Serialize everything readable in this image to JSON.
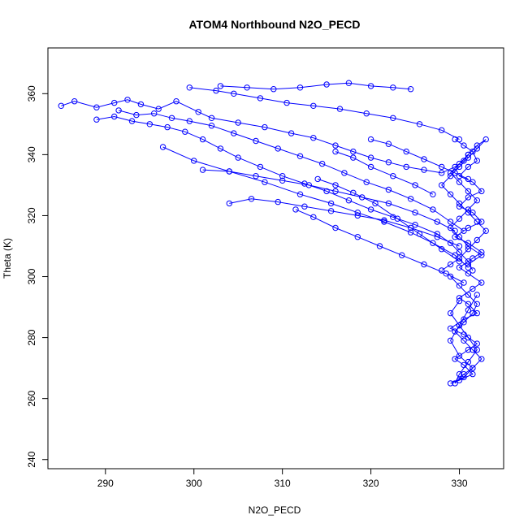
{
  "chart_data": {
    "type": "scatter",
    "title": "ATOM4 Northbound N2O_PECD",
    "xlabel": "N2O_PECD",
    "ylabel": "Theta (K)",
    "xlim": [
      283.5,
      335
    ],
    "ylim": [
      237,
      375
    ],
    "xticks": [
      290,
      300,
      310,
      320,
      330
    ],
    "yticks": [
      240,
      260,
      280,
      300,
      320,
      340,
      360
    ],
    "grid": false,
    "legend": "none",
    "style": "points connected by lines",
    "color": "#0000ff",
    "series": [
      {
        "x": [
          285.0,
          286.5,
          289.0,
          291.0,
          292.5,
          294.0,
          296.0,
          298.0,
          300.5,
          302.0,
          305.0,
          308.0,
          311.0,
          313.5,
          316.0,
          318.0,
          320.0,
          322.0,
          324.0,
          326.0,
          328.0,
          329.5,
          330.5,
          331.0
        ],
        "y": [
          356.0,
          357.5,
          355.5,
          357.0,
          358.0,
          356.5,
          355.0,
          357.5,
          354.0,
          352.0,
          350.5,
          349.0,
          347.0,
          345.5,
          343.0,
          341.0,
          339.0,
          337.5,
          336.0,
          335.0,
          334.0,
          336.0,
          338.0,
          340.0
        ]
      },
      {
        "x": [
          289.0,
          291.0,
          293.0,
          295.0,
          297.0,
          299.0,
          301.0,
          303.0,
          305.0,
          307.5,
          310.0,
          312.5,
          315.0,
          317.5,
          320.0,
          322.5,
          325.0,
          327.5,
          329.0,
          330.0,
          331.0,
          331.5
        ],
        "y": [
          351.5,
          352.5,
          351.0,
          350.0,
          349.0,
          347.5,
          345.0,
          342.0,
          339.0,
          336.0,
          333.0,
          330.5,
          328.0,
          325.0,
          322.0,
          319.5,
          317.0,
          314.0,
          311.0,
          308.0,
          305.0,
          302.0
        ]
      },
      {
        "x": [
          291.5,
          293.5,
          295.5,
          297.5,
          299.5,
          302.0,
          304.5,
          307.0,
          309.5,
          312.0,
          314.5,
          317.0,
          319.5,
          322.0,
          324.5,
          327.0,
          329.0,
          330.5
        ],
        "y": [
          354.5,
          353.0,
          353.5,
          352.0,
          351.0,
          349.5,
          347.0,
          344.5,
          342.0,
          339.5,
          337.0,
          334.0,
          331.0,
          328.5,
          325.5,
          322.0,
          318.0,
          315.0
        ]
      },
      {
        "x": [
          296.5,
          300.0,
          304.0,
          308.0,
          312.0,
          315.5,
          318.5,
          321.5,
          324.5,
          327.0,
          329.5,
          331.0
        ],
        "y": [
          342.5,
          338.0,
          334.5,
          331.0,
          327.0,
          324.0,
          321.0,
          318.0,
          314.5,
          311.0,
          307.0,
          303.0
        ]
      },
      {
        "x": [
          299.5,
          302.5,
          304.5,
          307.5,
          310.5,
          313.5,
          316.5,
          319.5,
          322.5,
          325.5,
          328.0,
          330.0
        ],
        "y": [
          362.0,
          361.0,
          360.0,
          358.5,
          357.0,
          356.0,
          355.0,
          353.5,
          352.0,
          350.0,
          348.0,
          345.0
        ]
      },
      {
        "x": [
          303.0,
          306.0,
          309.0,
          312.0,
          315.0,
          317.5,
          320.0,
          322.5,
          324.5
        ],
        "y": [
          362.5,
          362.0,
          361.5,
          362.0,
          363.0,
          363.5,
          362.5,
          362.0,
          361.5
        ]
      },
      {
        "x": [
          301.0,
          304.0,
          307.0,
          310.0,
          313.0,
          316.0,
          319.0,
          322.0,
          325.0,
          327.5,
          329.5
        ],
        "y": [
          335.0,
          334.5,
          333.0,
          331.5,
          330.0,
          328.0,
          326.0,
          324.0,
          321.0,
          318.0,
          315.0
        ]
      },
      {
        "x": [
          304.0,
          306.5,
          309.5,
          312.5,
          315.5,
          318.5,
          321.5,
          324.5,
          327.5,
          330.0
        ],
        "y": [
          324.0,
          325.5,
          324.5,
          323.0,
          321.5,
          320.0,
          318.5,
          316.0,
          313.0,
          310.0
        ]
      },
      {
        "x": [
          311.5,
          313.5,
          316.0,
          318.5,
          321.0,
          323.5,
          326.0,
          328.5,
          330.5
        ],
        "y": [
          322.0,
          319.5,
          316.0,
          313.0,
          310.0,
          307.0,
          304.0,
          301.0,
          298.0
        ]
      },
      {
        "x": [
          314.0,
          316.0,
          318.0,
          320.5,
          323.0,
          325.5,
          328.0,
          330.0
        ],
        "y": [
          332.0,
          330.0,
          327.5,
          324.0,
          319.0,
          314.0,
          309.0,
          305.0
        ]
      },
      {
        "x": [
          320.0,
          322.0,
          324.0,
          326.0,
          328.0,
          329.5,
          331.0
        ],
        "y": [
          345.0,
          343.5,
          341.0,
          338.5,
          336.0,
          334.0,
          332.0
        ]
      },
      {
        "x": [
          316.0,
          318.0,
          320.0,
          322.5,
          325.0,
          327.0
        ],
        "y": [
          341.0,
          339.0,
          336.0,
          333.0,
          330.0,
          327.0
        ]
      },
      {
        "x": [
          329.5,
          330.5,
          331.5,
          332.0,
          331.0,
          330.0,
          331.5,
          332.5,
          331.0,
          330.0,
          331.5,
          332.5,
          331.0,
          329.5,
          331.0,
          332.5,
          331.5,
          330.0,
          331.0,
          332.5,
          331.5,
          330.0,
          331.0,
          332.0,
          330.5,
          329.0,
          330.5,
          332.0,
          331.0,
          329.5,
          330.5,
          331.5,
          330.0,
          329.0,
          330.5,
          331.5,
          330.0,
          329.0,
          330.0,
          331.0,
          332.0
        ],
        "y": [
          345.0,
          343.0,
          341.0,
          338.0,
          336.0,
          333.0,
          331.0,
          328.0,
          326.0,
          323.0,
          321.0,
          318.0,
          316.0,
          313.0,
          311.0,
          308.0,
          306.0,
          303.0,
          301.0,
          298.0,
          296.0,
          293.0,
          291.0,
          288.0,
          286.0,
          283.0,
          281.0,
          278.0,
          276.0,
          273.0,
          271.0,
          268.0,
          266.0,
          265.0,
          267.0,
          270.0,
          274.0,
          279.0,
          284.0,
          289.0,
          294.0
        ]
      },
      {
        "x": [
          328.0,
          329.0,
          330.0,
          331.0,
          332.0,
          333.0,
          332.0,
          331.0,
          330.0,
          329.0,
          328.0,
          329.0,
          330.0,
          331.0,
          332.0,
          333.0,
          332.0,
          331.0,
          330.0,
          329.0,
          330.0,
          331.0,
          332.0,
          331.0,
          330.0,
          329.0,
          330.0,
          331.0,
          332.5,
          331.0
        ],
        "y": [
          302.0,
          304.0,
          306.0,
          309.0,
          312.0,
          315.0,
          318.0,
          321.0,
          324.0,
          327.0,
          330.0,
          333.0,
          336.0,
          339.0,
          342.0,
          345.0,
          343.0,
          340.0,
          337.0,
          334.0,
          331.0,
          328.0,
          325.0,
          322.0,
          319.0,
          316.0,
          313.0,
          310.0,
          307.0,
          304.0
        ]
      },
      {
        "x": [
          329.0,
          330.0,
          331.0,
          332.0,
          331.5,
          330.5,
          329.5,
          330.5,
          331.5,
          332.5,
          331.5,
          330.5,
          329.5,
          330.0,
          331.0,
          332.0,
          331.0,
          330.0,
          329.0,
          330.0
        ],
        "y": [
          300.0,
          297.0,
          294.0,
          291.0,
          288.0,
          285.0,
          282.0,
          279.0,
          276.0,
          273.0,
          270.0,
          268.0,
          265.0,
          268.0,
          272.0,
          276.0,
          280.0,
          284.0,
          288.0,
          292.0
        ]
      }
    ]
  }
}
